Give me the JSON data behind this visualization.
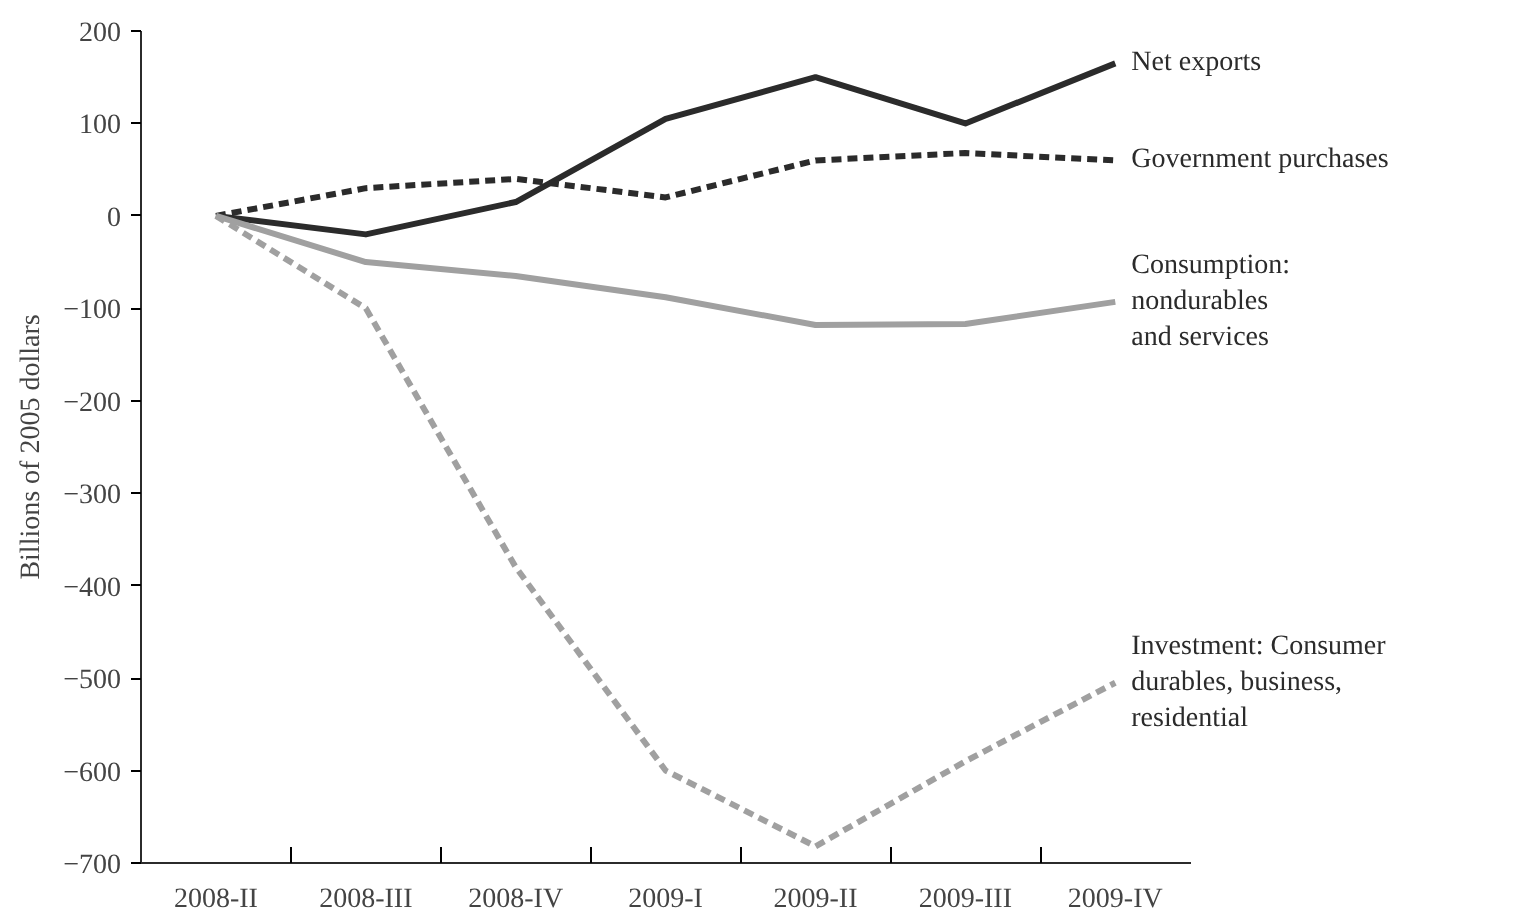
{
  "chart_data": {
    "type": "line",
    "ylabel": "Billions of 2005 dollars",
    "categories": [
      "2008-II",
      "2008-III",
      "2008-IV",
      "2009-I",
      "2009-II",
      "2009-III",
      "2009-IV"
    ],
    "ylim": [
      -700,
      200
    ],
    "yticks": [
      200,
      100,
      0,
      {
        "value": -100,
        "label": "−100"
      },
      {
        "value": -200,
        "label": "−200"
      },
      {
        "value": -300,
        "label": "−300"
      },
      {
        "value": -400,
        "label": "−400"
      },
      {
        "value": -500,
        "label": "−500"
      },
      {
        "value": -600,
        "label": "−600"
      },
      {
        "value": -700,
        "label": "−700"
      }
    ],
    "grid": false,
    "marker": "none",
    "series": [
      {
        "name": "Net exports",
        "color": "#2b2b2b",
        "line_style": "solid",
        "values": [
          0,
          -20,
          15,
          105,
          150,
          100,
          165
        ]
      },
      {
        "name": "Government purchases",
        "color": "#2b2b2b",
        "line_style": "dashed",
        "values": [
          0,
          30,
          40,
          20,
          60,
          68,
          60
        ]
      },
      {
        "name": "Consumption:\nnondurables\nand services",
        "color": "#a0a0a0",
        "line_style": "solid",
        "values": [
          0,
          -50,
          -65,
          -88,
          -118,
          -117,
          -93
        ]
      },
      {
        "name": "Investment: Consumer\ndurables, business,\nresidential",
        "color": "#a0a0a0",
        "line_style": "dashed",
        "values": [
          0,
          -100,
          -380,
          -600,
          -682,
          -590,
          -505
        ]
      }
    ]
  }
}
